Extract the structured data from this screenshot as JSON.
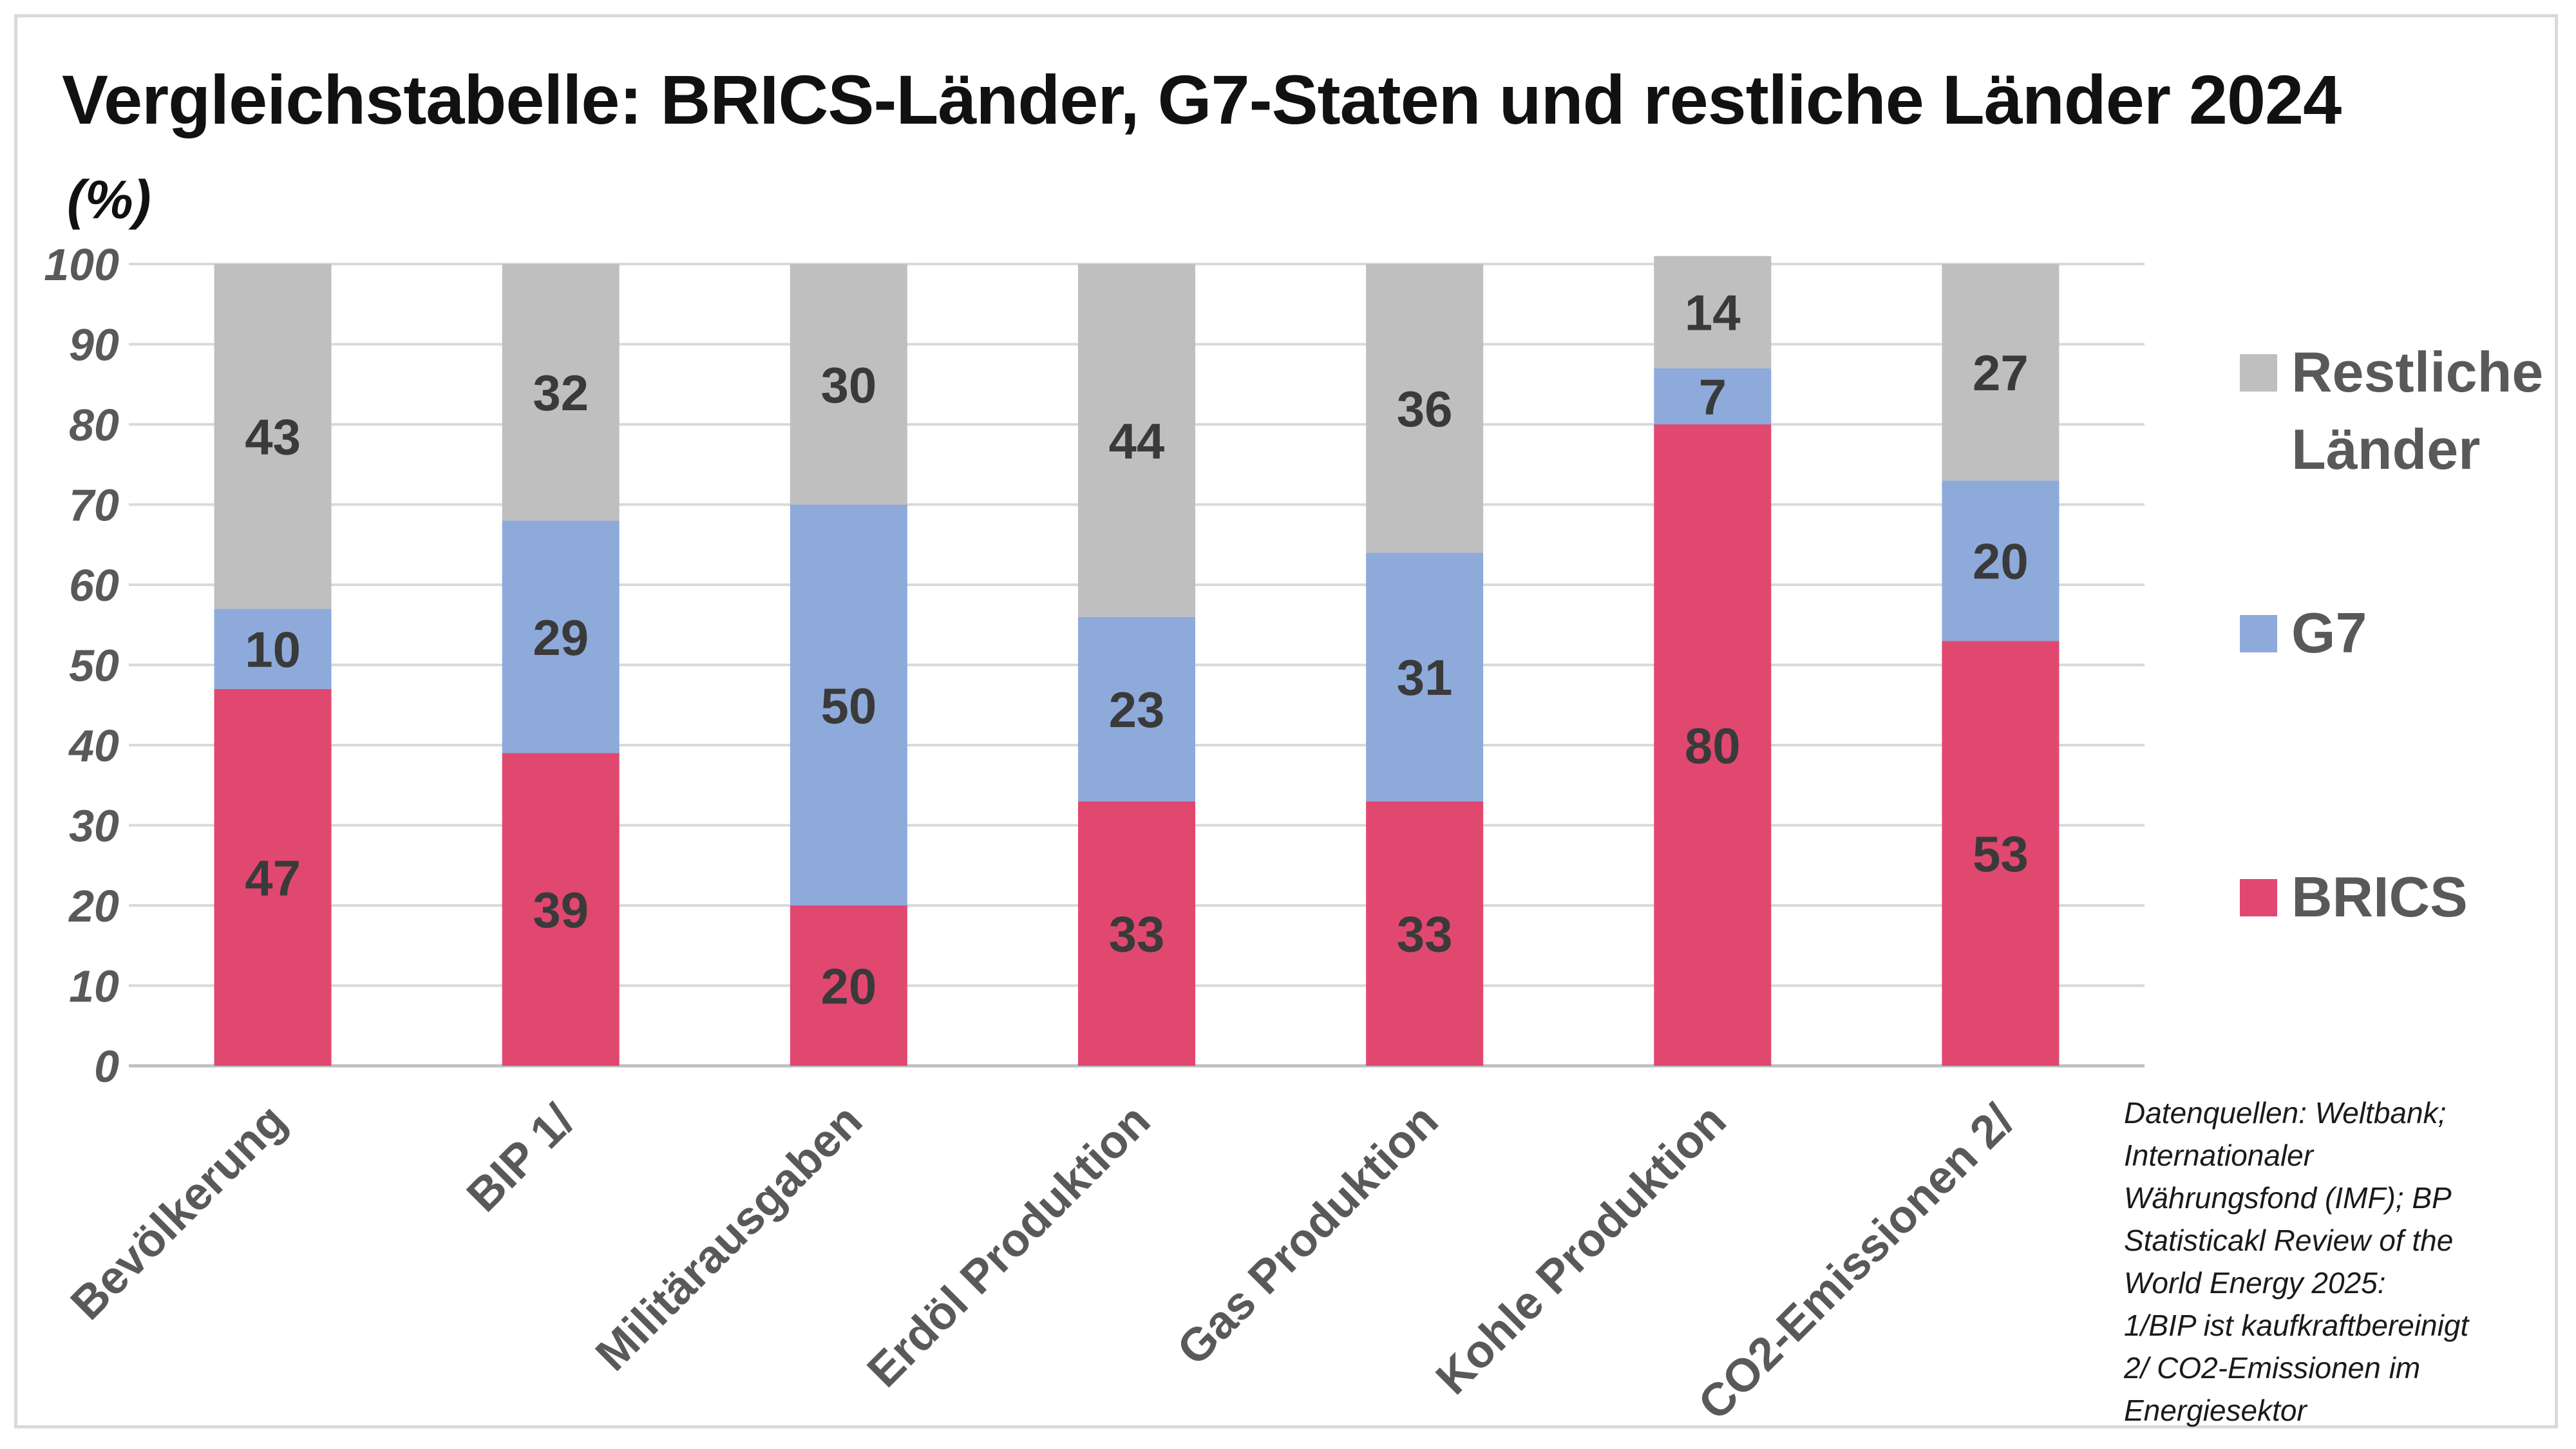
{
  "chart_data": {
    "type": "bar",
    "stacked": true,
    "title": "Vergleichstabelle: BRICS-Länder, G7-Staten und restliche Länder 2024",
    "ylabel": "(%)",
    "xlabel": "",
    "ylim": [
      0,
      100
    ],
    "yticks": [
      "0",
      "10",
      "20",
      "30",
      "40",
      "50",
      "60",
      "70",
      "80",
      "90",
      "100"
    ],
    "grid": true,
    "categories": [
      "Bevölkerung",
      "BIP 1/",
      "Militärausgaben",
      "Erdöl Produktion",
      "Gas Produktion",
      "Kohle Produktion",
      "CO2-Emissionen 2/"
    ],
    "series": [
      {
        "name": "BRICS",
        "color": "#e04870",
        "values": [
          47,
          39,
          20,
          33,
          33,
          80,
          53
        ]
      },
      {
        "name": "G7",
        "color": "#8eaadb",
        "values": [
          10,
          29,
          50,
          23,
          31,
          7,
          20
        ]
      },
      {
        "name": "Restliche Länder",
        "color": "#bfbfbf",
        "values": [
          43,
          32,
          30,
          44,
          36,
          14,
          27
        ]
      }
    ],
    "legend": {
      "position": "right",
      "entries": [
        {
          "lines": [
            "Restliche",
            "Länder"
          ],
          "color": "#bfbfbf"
        },
        {
          "lines": [
            "G7"
          ],
          "color": "#8eaadb"
        },
        {
          "lines": [
            "BRICS"
          ],
          "color": "#e04870"
        }
      ]
    }
  },
  "source_note": [
    "Datenquellen: Weltbank;",
    "Internationaler",
    "Währungsfond (IMF); BP",
    "Statisticakl Review of the",
    "World Energy 2025:",
    "1/BIP ist kaufkraftbereinigt",
    "2/ CO2-Emissionen im",
    "Energiesektor"
  ]
}
